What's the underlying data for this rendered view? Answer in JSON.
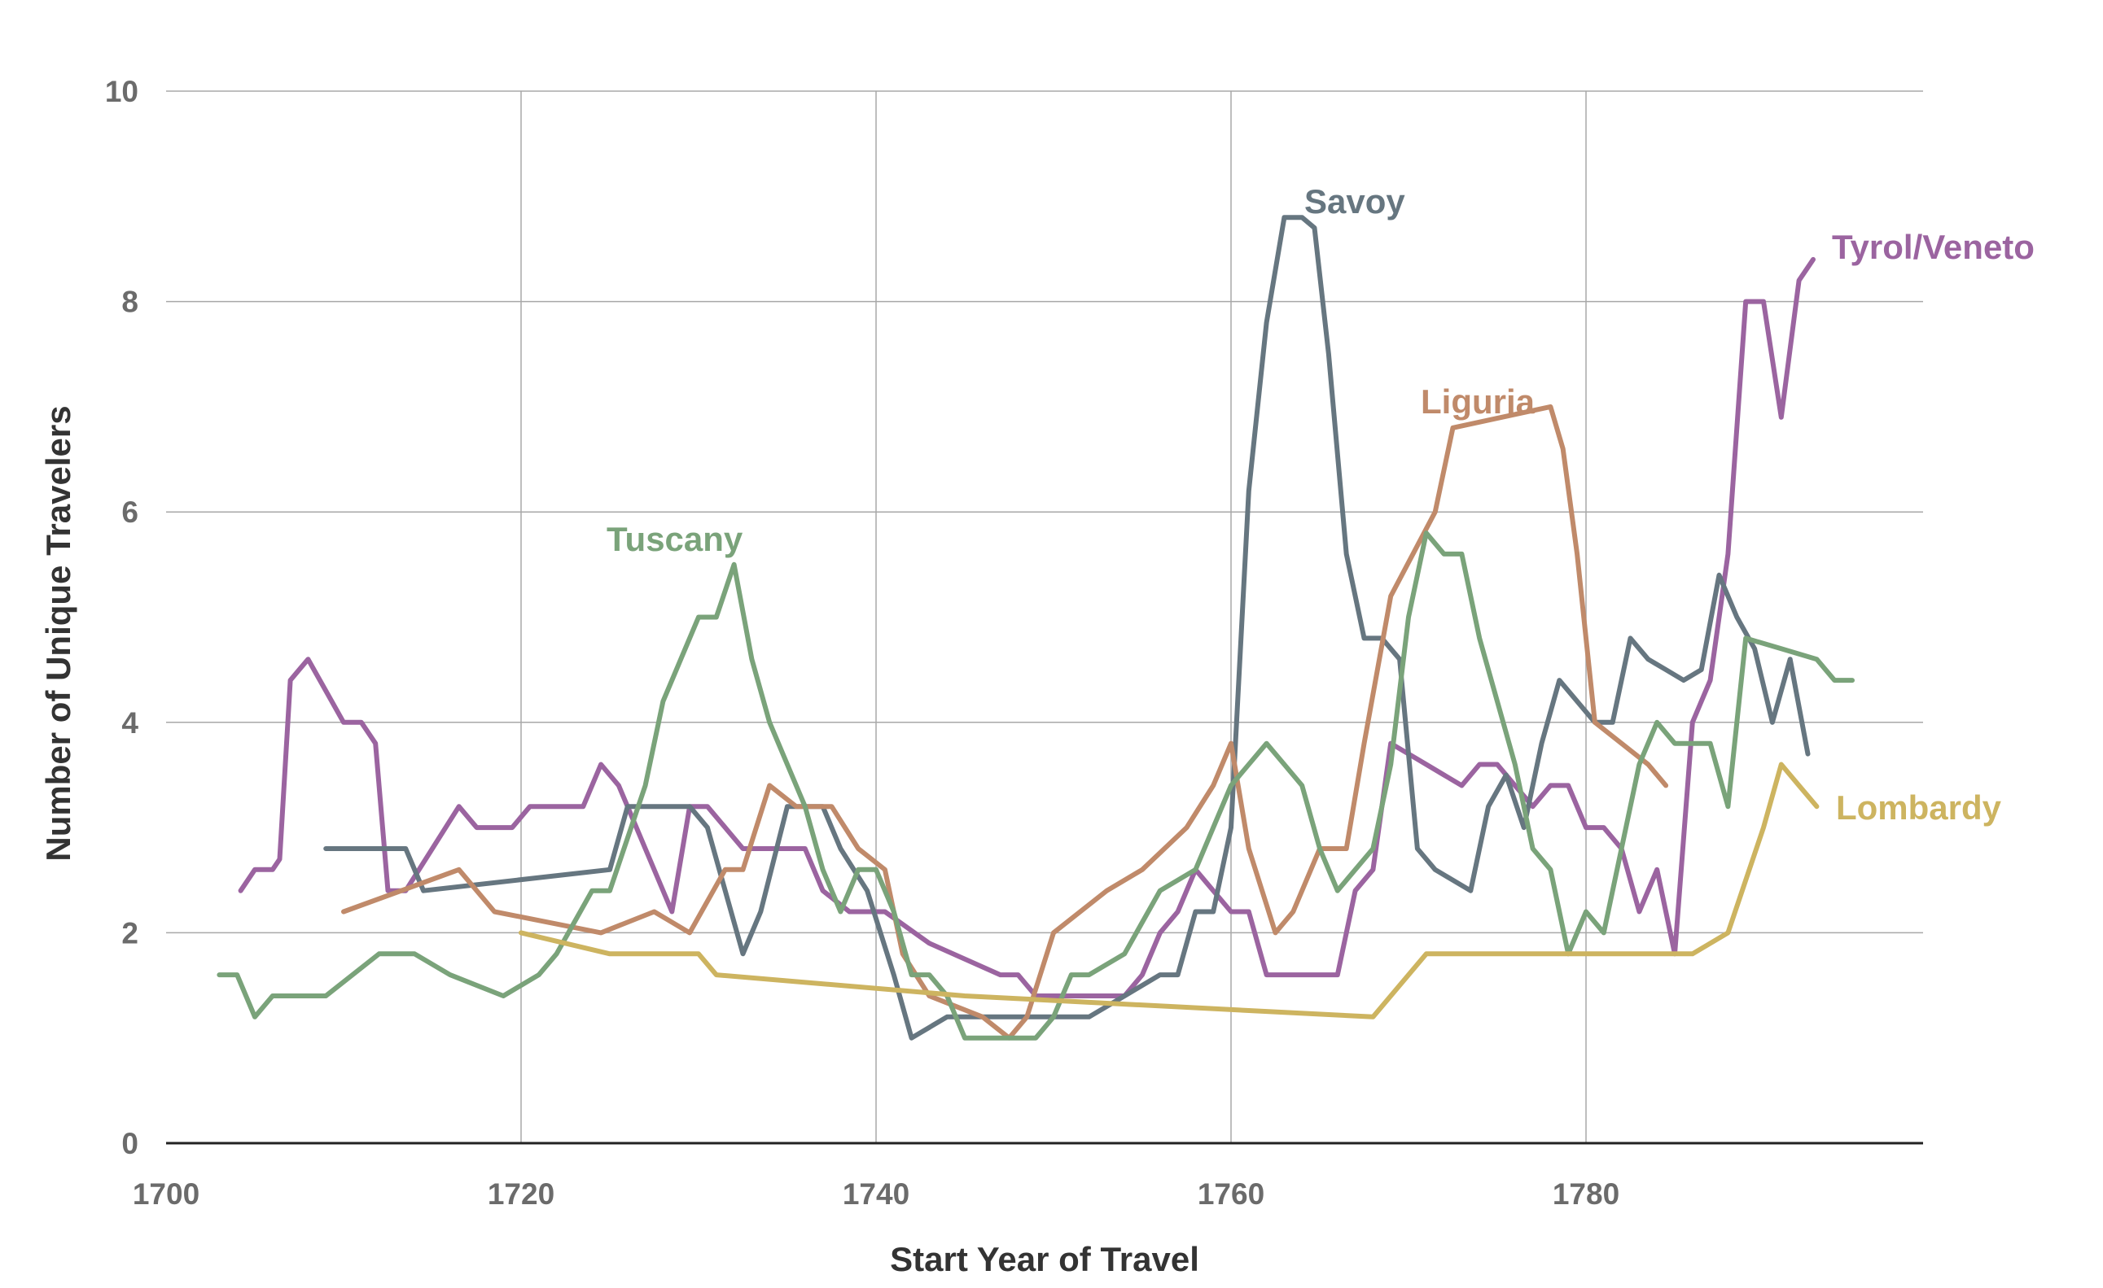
{
  "chart_data": {
    "type": "line",
    "title": "",
    "xlabel": "Start Year of Travel",
    "ylabel": "Number of Unique Travelers",
    "xlim": [
      1700,
      1795
    ],
    "ylim": [
      0,
      10
    ],
    "x_ticks": [
      1700,
      1720,
      1740,
      1760,
      1780
    ],
    "y_ticks": [
      0,
      2,
      4,
      6,
      8,
      10
    ],
    "grid": true,
    "legend": "inline labels at line ends/peaks",
    "series": [
      {
        "name": "Tyrol/Veneto",
        "color": "#9b64a0",
        "points": [
          [
            1704.2,
            2.4
          ],
          [
            1705,
            2.6
          ],
          [
            1706,
            2.6
          ],
          [
            1706.4,
            2.7
          ],
          [
            1707,
            4.4
          ],
          [
            1707.5,
            4.5
          ],
          [
            1708,
            4.6
          ],
          [
            1709,
            4.3
          ],
          [
            1710,
            4.0
          ],
          [
            1711,
            4.0
          ],
          [
            1711.8,
            3.8
          ],
          [
            1712.5,
            2.4
          ],
          [
            1713.5,
            2.4
          ],
          [
            1715,
            2.8
          ],
          [
            1716.5,
            3.2
          ],
          [
            1717.5,
            3.0
          ],
          [
            1719.5,
            3.0
          ],
          [
            1720.5,
            3.2
          ],
          [
            1723.5,
            3.2
          ],
          [
            1724.5,
            3.6
          ],
          [
            1725.5,
            3.4
          ],
          [
            1727,
            2.8
          ],
          [
            1728.5,
            2.2
          ],
          [
            1729.5,
            3.2
          ],
          [
            1730.5,
            3.2
          ],
          [
            1731.5,
            3.0
          ],
          [
            1732.5,
            2.8
          ],
          [
            1733.5,
            2.8
          ],
          [
            1735.5,
            2.8
          ],
          [
            1736,
            2.8
          ],
          [
            1737,
            2.4
          ],
          [
            1738.5,
            2.2
          ],
          [
            1740.5,
            2.2
          ],
          [
            1743,
            1.9
          ],
          [
            1747,
            1.6
          ],
          [
            1748,
            1.6
          ],
          [
            1749,
            1.4
          ],
          [
            1750,
            1.4
          ],
          [
            1751,
            1.4
          ],
          [
            1752,
            1.4
          ],
          [
            1753,
            1.4
          ],
          [
            1754,
            1.4
          ],
          [
            1755,
            1.6
          ],
          [
            1756,
            2.0
          ],
          [
            1757,
            2.2
          ],
          [
            1758,
            2.6
          ],
          [
            1759,
            2.4
          ],
          [
            1760,
            2.2
          ],
          [
            1761,
            2.2
          ],
          [
            1762,
            1.6
          ],
          [
            1763,
            1.6
          ],
          [
            1765,
            1.6
          ],
          [
            1766,
            1.6
          ],
          [
            1767,
            2.4
          ],
          [
            1768,
            2.6
          ],
          [
            1769,
            3.8
          ],
          [
            1770,
            3.7
          ],
          [
            1771,
            3.6
          ],
          [
            1772,
            3.5
          ],
          [
            1773,
            3.4
          ],
          [
            1774,
            3.6
          ],
          [
            1775,
            3.6
          ],
          [
            1776,
            3.4
          ],
          [
            1777,
            3.2
          ],
          [
            1778,
            3.4
          ],
          [
            1779,
            3.4
          ],
          [
            1780,
            3.0
          ],
          [
            1781,
            3.0
          ],
          [
            1782,
            2.8
          ],
          [
            1783,
            2.2
          ],
          [
            1784,
            2.6
          ],
          [
            1785,
            1.8
          ],
          [
            1786,
            4.0
          ],
          [
            1787,
            4.4
          ],
          [
            1788,
            5.6
          ],
          [
            1789,
            8.0
          ],
          [
            1790,
            8.0
          ],
          [
            1791,
            6.9
          ],
          [
            1792,
            8.2
          ],
          [
            1792.8,
            8.4
          ]
        ]
      },
      {
        "name": "Savoy",
        "color": "#667680",
        "points": [
          [
            1709,
            2.8
          ],
          [
            1713.5,
            2.8
          ],
          [
            1714.5,
            2.4
          ],
          [
            1725,
            2.6
          ],
          [
            1726,
            3.2
          ],
          [
            1729.5,
            3.2
          ],
          [
            1730.5,
            3.0
          ],
          [
            1732.5,
            1.8
          ],
          [
            1733.5,
            2.2
          ],
          [
            1735,
            3.2
          ],
          [
            1737,
            3.2
          ],
          [
            1738,
            2.8
          ],
          [
            1739.5,
            2.4
          ],
          [
            1741,
            1.6
          ],
          [
            1742,
            1.0
          ],
          [
            1744,
            1.2
          ],
          [
            1746,
            1.2
          ],
          [
            1752,
            1.2
          ],
          [
            1754,
            1.4
          ],
          [
            1756,
            1.6
          ],
          [
            1757,
            1.6
          ],
          [
            1758,
            2.2
          ],
          [
            1759,
            2.2
          ],
          [
            1760,
            3.0
          ],
          [
            1761,
            6.2
          ],
          [
            1762,
            7.8
          ],
          [
            1763,
            8.8
          ],
          [
            1764,
            8.8
          ],
          [
            1764.7,
            8.7
          ],
          [
            1765.5,
            7.5
          ],
          [
            1766.5,
            5.6
          ],
          [
            1767.5,
            4.8
          ],
          [
            1768.5,
            4.8
          ],
          [
            1769.5,
            4.6
          ],
          [
            1770.5,
            2.8
          ],
          [
            1771.5,
            2.6
          ],
          [
            1773.5,
            2.4
          ],
          [
            1774.5,
            3.2
          ],
          [
            1775.5,
            3.5
          ],
          [
            1776.5,
            3.0
          ],
          [
            1777.5,
            3.8
          ],
          [
            1778.5,
            4.4
          ],
          [
            1779.5,
            4.2
          ],
          [
            1780.5,
            4.0
          ],
          [
            1781.5,
            4.0
          ],
          [
            1782.5,
            4.8
          ],
          [
            1783.5,
            4.6
          ],
          [
            1784.5,
            4.5
          ],
          [
            1785.5,
            4.4
          ],
          [
            1786.5,
            4.5
          ],
          [
            1787.5,
            5.4
          ],
          [
            1788.5,
            5.0
          ],
          [
            1789.5,
            4.7
          ],
          [
            1790.5,
            4.0
          ],
          [
            1791.5,
            4.6
          ],
          [
            1792.5,
            3.7
          ]
        ]
      },
      {
        "name": "Liguria",
        "color": "#c08a6a",
        "points": [
          [
            1710,
            2.2
          ],
          [
            1716.5,
            2.6
          ],
          [
            1718.5,
            2.2
          ],
          [
            1724.5,
            2.0
          ],
          [
            1727.5,
            2.2
          ],
          [
            1729.5,
            2.0
          ],
          [
            1731.5,
            2.6
          ],
          [
            1732.5,
            2.6
          ],
          [
            1734,
            3.4
          ],
          [
            1735.5,
            3.2
          ],
          [
            1737.5,
            3.2
          ],
          [
            1739,
            2.8
          ],
          [
            1740.5,
            2.6
          ],
          [
            1741.5,
            1.8
          ],
          [
            1743,
            1.4
          ],
          [
            1746,
            1.2
          ],
          [
            1747.5,
            1.0
          ],
          [
            1748.5,
            1.2
          ],
          [
            1750,
            2.0
          ],
          [
            1753,
            2.4
          ],
          [
            1755,
            2.6
          ],
          [
            1757.5,
            3.0
          ],
          [
            1759,
            3.4
          ],
          [
            1760,
            3.8
          ],
          [
            1761,
            2.8
          ],
          [
            1762.5,
            2.0
          ],
          [
            1763.5,
            2.2
          ],
          [
            1765,
            2.8
          ],
          [
            1766,
            2.8
          ],
          [
            1766.5,
            2.8
          ],
          [
            1767.5,
            3.8
          ],
          [
            1769,
            5.2
          ],
          [
            1771.5,
            6.0
          ],
          [
            1772.5,
            6.8
          ],
          [
            1778,
            7.0
          ],
          [
            1778.7,
            6.6
          ],
          [
            1779.5,
            5.6
          ],
          [
            1780.5,
            4.0
          ],
          [
            1783.5,
            3.6
          ],
          [
            1784.5,
            3.4
          ]
        ]
      },
      {
        "name": "Tuscany",
        "color": "#7aa37a",
        "points": [
          [
            1703,
            1.6
          ],
          [
            1704,
            1.6
          ],
          [
            1705,
            1.2
          ],
          [
            1706,
            1.4
          ],
          [
            1709,
            1.4
          ],
          [
            1712,
            1.8
          ],
          [
            1714,
            1.8
          ],
          [
            1716,
            1.6
          ],
          [
            1719,
            1.4
          ],
          [
            1721,
            1.6
          ],
          [
            1722,
            1.8
          ],
          [
            1723,
            2.1
          ],
          [
            1724,
            2.4
          ],
          [
            1725,
            2.4
          ],
          [
            1727,
            3.4
          ],
          [
            1728,
            4.2
          ],
          [
            1729,
            4.6
          ],
          [
            1730,
            5.0
          ],
          [
            1731,
            5.0
          ],
          [
            1732,
            5.5
          ],
          [
            1733,
            4.6
          ],
          [
            1734,
            4.0
          ],
          [
            1735,
            3.6
          ],
          [
            1736,
            3.2
          ],
          [
            1737,
            2.6
          ],
          [
            1738,
            2.2
          ],
          [
            1739,
            2.6
          ],
          [
            1740,
            2.6
          ],
          [
            1741,
            2.2
          ],
          [
            1742,
            1.6
          ],
          [
            1743,
            1.6
          ],
          [
            1744,
            1.4
          ],
          [
            1745,
            1.0
          ],
          [
            1749,
            1.0
          ],
          [
            1750,
            1.2
          ],
          [
            1751,
            1.6
          ],
          [
            1752,
            1.6
          ],
          [
            1754,
            1.8
          ],
          [
            1756,
            2.4
          ],
          [
            1758,
            2.6
          ],
          [
            1759,
            3.0
          ],
          [
            1760,
            3.4
          ],
          [
            1761,
            3.6
          ],
          [
            1762,
            3.8
          ],
          [
            1763,
            3.6
          ],
          [
            1764,
            3.4
          ],
          [
            1765,
            2.8
          ],
          [
            1766,
            2.4
          ],
          [
            1767,
            2.6
          ],
          [
            1768,
            2.8
          ],
          [
            1769,
            3.6
          ],
          [
            1770,
            5.0
          ],
          [
            1771,
            5.8
          ],
          [
            1772,
            5.6
          ],
          [
            1773,
            5.6
          ],
          [
            1774,
            4.8
          ],
          [
            1775,
            4.2
          ],
          [
            1776,
            3.6
          ],
          [
            1777,
            2.8
          ],
          [
            1778,
            2.6
          ],
          [
            1779,
            1.8
          ],
          [
            1780,
            2.2
          ],
          [
            1781,
            2.0
          ],
          [
            1782,
            2.8
          ],
          [
            1783,
            3.6
          ],
          [
            1784,
            4.0
          ],
          [
            1785,
            3.8
          ],
          [
            1787,
            3.8
          ],
          [
            1788,
            3.2
          ],
          [
            1789,
            4.8
          ],
          [
            1791,
            4.7
          ],
          [
            1793,
            4.6
          ],
          [
            1794,
            4.4
          ],
          [
            1795,
            4.4
          ]
        ]
      },
      {
        "name": "Lombardy",
        "color": "#cdb460",
        "points": [
          [
            1720,
            2.0
          ],
          [
            1725,
            1.8
          ],
          [
            1730,
            1.8
          ],
          [
            1731,
            1.6
          ],
          [
            1745,
            1.4
          ],
          [
            1768,
            1.2
          ],
          [
            1771,
            1.8
          ],
          [
            1786,
            1.8
          ],
          [
            1788,
            2.0
          ],
          [
            1790,
            3.0
          ],
          [
            1791,
            3.6
          ],
          [
            1792,
            3.4
          ],
          [
            1793,
            3.2
          ]
        ]
      }
    ]
  }
}
